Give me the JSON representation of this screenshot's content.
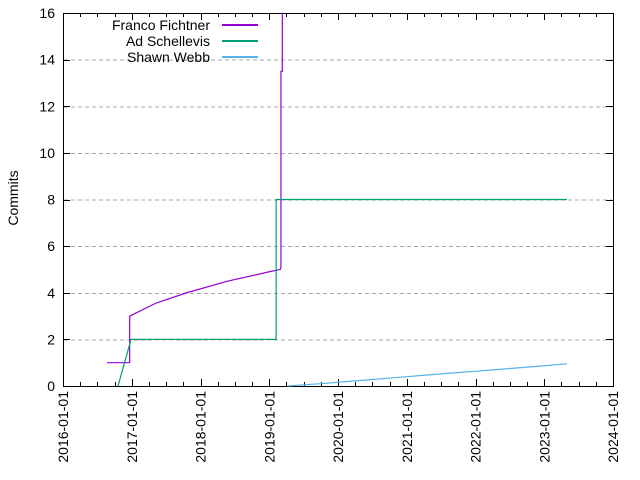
{
  "chart_data": {
    "type": "line",
    "title": "",
    "xlabel": "",
    "ylabel": "Commits",
    "xlim": [
      2016,
      2024
    ],
    "ylim": [
      0,
      16
    ],
    "x_tick_labels": [
      "2016-01-01",
      "2017-01-01",
      "2018-01-01",
      "2019-01-01",
      "2020-01-01",
      "2021-01-01",
      "2022-01-01",
      "2023-01-01",
      "2024-01-01"
    ],
    "x_tick_values": [
      2016,
      2017,
      2018,
      2019,
      2020,
      2021,
      2022,
      2023,
      2024
    ],
    "x_minor_tick_interval": 0.25,
    "y_tick_values": [
      0,
      2,
      4,
      6,
      8,
      10,
      12,
      14,
      16
    ],
    "grid": {
      "horizontal": true,
      "vertical": false,
      "style": "dashed",
      "color": "#a9a9a9"
    },
    "axis_color": "#000000",
    "background": "#ffffff",
    "legend": {
      "position": "top-left-inside"
    },
    "series": [
      {
        "name": "Franco Fichtner",
        "color": "#9400d3",
        "points": [
          [
            2016.64,
            1
          ],
          [
            2016.97,
            1
          ],
          [
            2016.97,
            3
          ],
          [
            2017.35,
            3.55
          ],
          [
            2017.8,
            4
          ],
          [
            2018.4,
            4.5
          ],
          [
            2019.0,
            4.9
          ],
          [
            2019.16,
            5
          ],
          [
            2019.17,
            5.1
          ],
          [
            2019.17,
            13.5
          ],
          [
            2019.19,
            13.5
          ],
          [
            2019.19,
            17
          ]
        ]
      },
      {
        "name": "Ad Schellevis",
        "color": "#009e73",
        "points": [
          [
            2016.8,
            0
          ],
          [
            2016.99,
            2
          ],
          [
            2019.1,
            2
          ],
          [
            2019.1,
            8
          ],
          [
            2023.33,
            8
          ]
        ]
      },
      {
        "name": "Shawn Webb",
        "color": "#56b4e9",
        "points": [
          [
            2019.27,
            0
          ],
          [
            2019.5,
            0.05
          ],
          [
            2019.75,
            0.1
          ],
          [
            2020,
            0.16
          ],
          [
            2020.25,
            0.22
          ],
          [
            2020.5,
            0.28
          ],
          [
            2020.75,
            0.34
          ],
          [
            2021,
            0.4
          ],
          [
            2021.25,
            0.46
          ],
          [
            2021.5,
            0.52
          ],
          [
            2021.75,
            0.58
          ],
          [
            2022,
            0.63
          ],
          [
            2022.25,
            0.69
          ],
          [
            2022.5,
            0.75
          ],
          [
            2022.75,
            0.81
          ],
          [
            2023,
            0.87
          ],
          [
            2023.2,
            0.92
          ],
          [
            2023.33,
            0.95
          ]
        ]
      }
    ]
  }
}
